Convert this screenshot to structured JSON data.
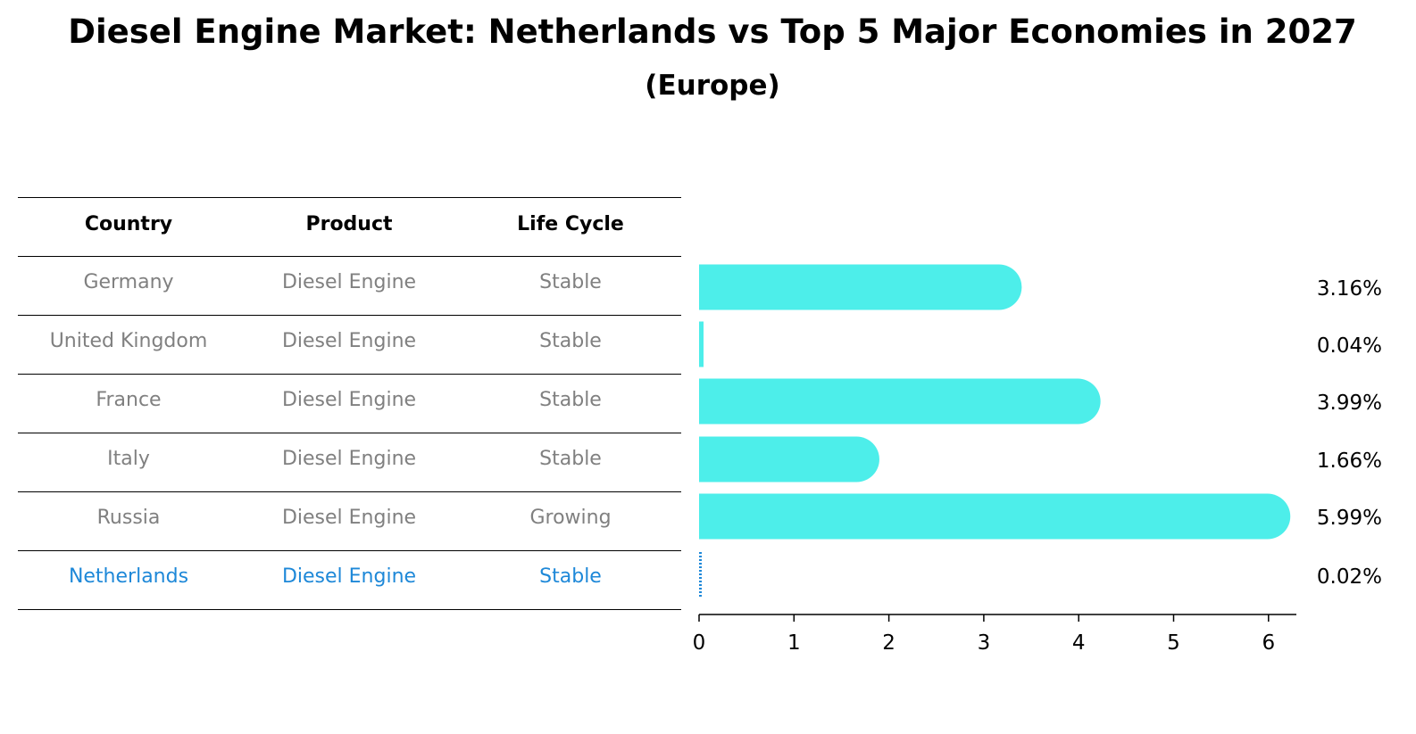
{
  "header": {
    "title": "Diesel Engine Market: Netherlands vs Top 5 Major Economies in 2027",
    "subtitle": "(Europe)"
  },
  "table": {
    "columns": [
      "Country",
      "Product",
      "Life Cycle"
    ],
    "rows": [
      {
        "country": "Germany",
        "product": "Diesel Engine",
        "life_cycle": "Stable",
        "highlight": false
      },
      {
        "country": "United Kingdom",
        "product": "Diesel Engine",
        "life_cycle": "Stable",
        "highlight": false
      },
      {
        "country": "France",
        "product": "Diesel Engine",
        "life_cycle": "Stable",
        "highlight": false
      },
      {
        "country": "Italy",
        "product": "Diesel Engine",
        "life_cycle": "Stable",
        "highlight": false
      },
      {
        "country": "Russia",
        "product": "Diesel Engine",
        "life_cycle": "Growing",
        "highlight": false
      },
      {
        "country": "Netherlands",
        "product": "Diesel Engine",
        "life_cycle": "Stable",
        "highlight": true
      }
    ]
  },
  "colors": {
    "bar": "#4deeea",
    "highlight": "#1e88d8",
    "muted_text": "#808080",
    "axis": "#000000"
  },
  "chart_data": {
    "type": "bar",
    "orientation": "horizontal",
    "categories": [
      "Germany",
      "United Kingdom",
      "France",
      "Italy",
      "Russia",
      "Netherlands"
    ],
    "values": [
      3.16,
      0.04,
      3.99,
      1.66,
      5.99,
      0.02
    ],
    "value_labels": [
      "3.16%",
      "0.04%",
      "3.99%",
      "1.66%",
      "5.99%",
      "0.02%"
    ],
    "xticks": [
      0,
      1,
      2,
      3,
      4,
      5,
      6
    ],
    "xlim": [
      0,
      6.3
    ],
    "xlabel": "",
    "ylabel": "",
    "grid": false,
    "highlight_category": "Netherlands"
  }
}
